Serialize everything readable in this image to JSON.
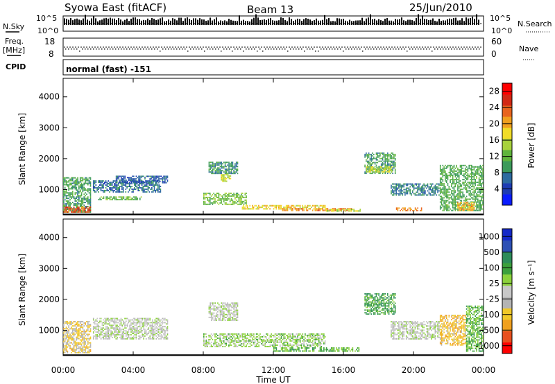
{
  "header": {
    "station": "Syowa East (fitACF)",
    "beam": "Beam 13",
    "date": "25/Jun/2010"
  },
  "top_panels": {
    "nsky_label": "N.Sky",
    "nsearch_label": "N.Search",
    "noise_ticks": [
      "10^5",
      "10^0"
    ],
    "freq_label_1": "Freq.",
    "freq_label_2": "[MHz]",
    "freq_ticks": [
      "18",
      "8"
    ],
    "nave_label": "Nave",
    "nave_ticks": [
      "60",
      "0"
    ],
    "cpid_label": "CPID",
    "cpid_text": "normal (fast) -151"
  },
  "axes": {
    "xlabel": "Time UT",
    "ylabel": "Slant Range [km]",
    "x_ticks": [
      "00:00",
      "04:00",
      "08:00",
      "12:00",
      "16:00",
      "20:00",
      "00:00"
    ],
    "y_ticks": [
      "1000",
      "2000",
      "3000",
      "4000"
    ]
  },
  "colors": {
    "power": [
      "#0a1cff",
      "#1e3cb4",
      "#2d6aa0",
      "#3c9a5a",
      "#5fb43c",
      "#a8d23c",
      "#f0dc28",
      "#f0a01e",
      "#e8641e",
      "#d22814",
      "#ff0000"
    ],
    "velocity": [
      "#ff0000",
      "#e8501e",
      "#f0a01e",
      "#f0c828",
      "#b4b4b4",
      "#c8c8c8",
      "#8cd23c",
      "#3ca03c",
      "#2d8c5a",
      "#2d50b4",
      "#1428c8"
    ]
  },
  "chart_data": [
    {
      "type": "heatmap",
      "name": "Power",
      "colorbar_label": "Power [dB]",
      "colorbar_ticks": [
        "4",
        "8",
        "12",
        "16",
        "20",
        "24",
        "28"
      ],
      "x_range_hours": [
        0,
        24
      ],
      "y_range_km": [
        180,
        4600
      ],
      "value_range": [
        0,
        30
      ],
      "regions": [
        {
          "t0": 0.0,
          "t1": 1.6,
          "r0": 250,
          "r1": 1400,
          "v": 10
        },
        {
          "t0": 0.0,
          "t1": 1.6,
          "r0": 250,
          "r1": 450,
          "v": 24
        },
        {
          "t0": 1.7,
          "t1": 5.6,
          "r0": 900,
          "r1": 1300,
          "v": 7
        },
        {
          "t0": 3.0,
          "t1": 6.0,
          "r0": 1200,
          "r1": 1450,
          "v": 6
        },
        {
          "t0": 2.0,
          "t1": 4.5,
          "r0": 650,
          "r1": 780,
          "v": 12
        },
        {
          "t0": 8.3,
          "t1": 10.0,
          "r0": 1500,
          "r1": 1900,
          "v": 9
        },
        {
          "t0": 9.0,
          "t1": 9.6,
          "r0": 1250,
          "r1": 1500,
          "v": 16
        },
        {
          "t0": 8.0,
          "t1": 10.5,
          "r0": 500,
          "r1": 900,
          "v": 13
        },
        {
          "t0": 10.2,
          "t1": 15.0,
          "r0": 350,
          "r1": 500,
          "v": 18
        },
        {
          "t0": 12.5,
          "t1": 16.5,
          "r0": 300,
          "r1": 400,
          "v": 22
        },
        {
          "t0": 15.0,
          "t1": 17.0,
          "r0": 280,
          "r1": 380,
          "v": 16
        },
        {
          "t0": 17.2,
          "t1": 19.0,
          "r0": 1500,
          "r1": 2200,
          "v": 10
        },
        {
          "t0": 17.3,
          "t1": 18.8,
          "r0": 1550,
          "r1": 1750,
          "v": 16
        },
        {
          "t0": 18.7,
          "t1": 21.5,
          "r0": 800,
          "r1": 1200,
          "v": 8
        },
        {
          "t0": 19.0,
          "t1": 20.5,
          "r0": 300,
          "r1": 420,
          "v": 22
        },
        {
          "t0": 21.5,
          "t1": 24.0,
          "r0": 300,
          "r1": 1800,
          "v": 11
        },
        {
          "t0": 22.5,
          "t1": 23.5,
          "r0": 300,
          "r1": 600,
          "v": 20
        }
      ]
    },
    {
      "type": "heatmap",
      "name": "Velocity",
      "colorbar_label": "Velocity [m s⁻¹]",
      "colorbar_ticks": [
        "1000",
        "500",
        "100",
        "25",
        "-25",
        "-100",
        "-500",
        "-1000"
      ],
      "x_range_hours": [
        0,
        24
      ],
      "y_range_km": [
        180,
        4600
      ],
      "value_range": [
        -1000,
        1000
      ],
      "regions": [
        {
          "t0": 0.0,
          "t1": 1.6,
          "r0": 250,
          "r1": 1300,
          "v": -300
        },
        {
          "t0": 1.7,
          "t1": 6.0,
          "r0": 700,
          "r1": 1400,
          "v": 0
        },
        {
          "t0": 8.3,
          "t1": 10.0,
          "r0": 1300,
          "r1": 1900,
          "v": 10
        },
        {
          "t0": 8.0,
          "t1": 15.0,
          "r0": 450,
          "r1": 900,
          "v": 150
        },
        {
          "t0": 12.0,
          "t1": 17.0,
          "r0": 300,
          "r1": 450,
          "v": 300
        },
        {
          "t0": 17.2,
          "t1": 19.0,
          "r0": 1500,
          "r1": 2200,
          "v": 400
        },
        {
          "t0": 18.7,
          "t1": 21.5,
          "r0": 700,
          "r1": 1300,
          "v": 0
        },
        {
          "t0": 21.5,
          "t1": 23.0,
          "r0": 500,
          "r1": 1500,
          "v": -400
        },
        {
          "t0": 23.0,
          "t1": 24.0,
          "r0": 300,
          "r1": 1800,
          "v": 300
        }
      ]
    }
  ]
}
